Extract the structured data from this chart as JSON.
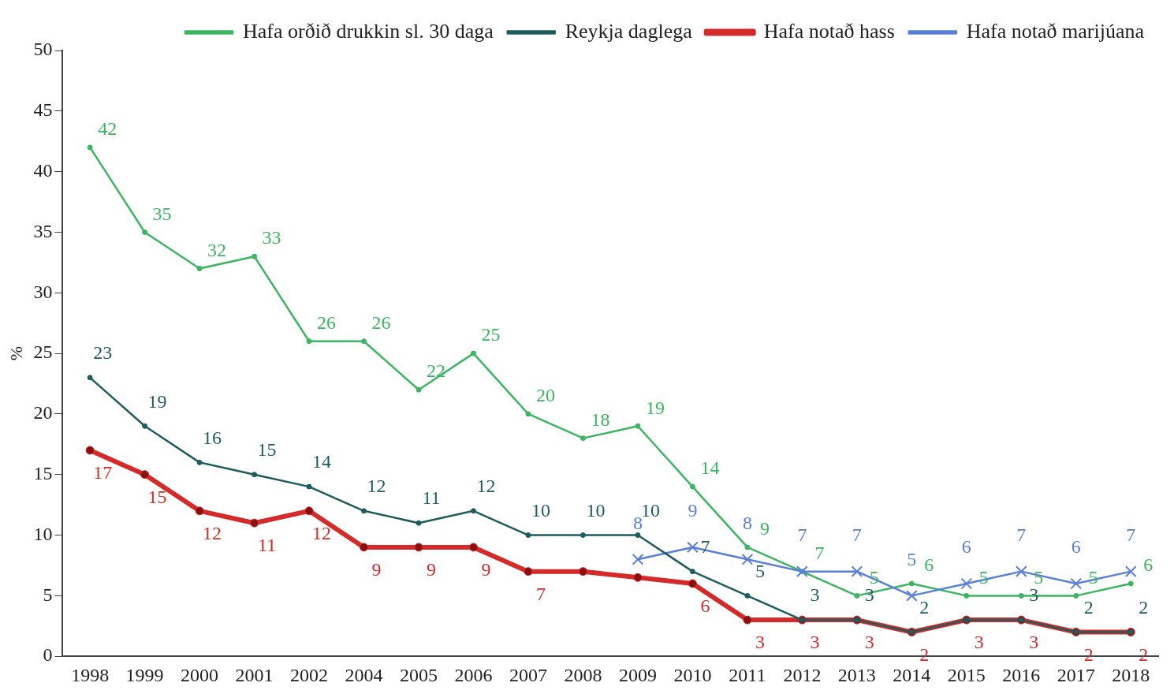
{
  "chart_data": {
    "type": "line",
    "ylabel": "%",
    "categories": [
      "1998",
      "1999",
      "2000",
      "2001",
      "2002",
      "2004",
      "2005",
      "2006",
      "2007",
      "2008",
      "2009",
      "2010",
      "2011",
      "2012",
      "2013",
      "2014",
      "2015",
      "2016",
      "2017",
      "2018"
    ],
    "ylim": [
      0,
      50
    ],
    "yticks": [
      0,
      5,
      10,
      15,
      20,
      25,
      30,
      35,
      40,
      45,
      50
    ],
    "grid": false,
    "legend": "top right",
    "line_style": "solid",
    "series": [
      {
        "name": "Hafa orðið drukkin sl. 30 daga",
        "color": "#3cb562",
        "marker": "circle",
        "values": [
          42,
          35,
          32,
          33,
          26,
          26,
          22,
          25,
          20,
          18,
          19,
          14,
          9,
          7,
          5,
          6,
          5,
          5,
          5,
          6
        ],
        "value_labels": [
          "42",
          "35",
          "32",
          "33",
          "26",
          "26",
          "22",
          "25",
          "20",
          "18",
          "19",
          "14",
          "9",
          "7",
          "5",
          "6",
          "5",
          "5",
          "5",
          "6"
        ]
      },
      {
        "name": "Reykja daglega",
        "color": "#1e5c5e",
        "marker": "circle",
        "values": [
          23,
          19,
          16,
          15,
          14,
          12,
          11,
          12,
          10,
          10,
          10,
          7,
          5,
          3,
          3,
          2,
          3,
          3,
          2,
          2
        ],
        "value_labels": [
          "23",
          "19",
          "16",
          "15",
          "14",
          "12",
          "11",
          "12",
          "10",
          "10",
          "10",
          "7",
          "5",
          "3",
          "3",
          "2",
          null,
          "3",
          "2",
          "2"
        ]
      },
      {
        "name": "Hafa notað hass",
        "color": "#d42a2a",
        "marker": "circle",
        "values": [
          17,
          15,
          12,
          11,
          12,
          9,
          9,
          9,
          7,
          7,
          6.5,
          6,
          3,
          3,
          3,
          2,
          3,
          3,
          2,
          2
        ],
        "value_labels": [
          "17",
          "15",
          "12",
          "11",
          "12",
          "9",
          "9",
          "9",
          "7",
          null,
          null,
          "6",
          "3",
          "3",
          "3",
          "2",
          "3",
          "3",
          "2",
          "2"
        ]
      },
      {
        "name": "Hafa notað marijúana",
        "color": "#5a7fd8",
        "marker": "cross",
        "values": [
          null,
          null,
          null,
          null,
          null,
          null,
          null,
          null,
          null,
          null,
          8,
          9,
          8,
          7,
          7,
          5,
          6,
          7,
          6,
          7
        ],
        "value_labels": [
          null,
          null,
          null,
          null,
          null,
          null,
          null,
          null,
          null,
          null,
          "8",
          "9",
          "8",
          "7",
          "7",
          "5",
          "6",
          "7",
          "6",
          "7"
        ]
      }
    ]
  }
}
